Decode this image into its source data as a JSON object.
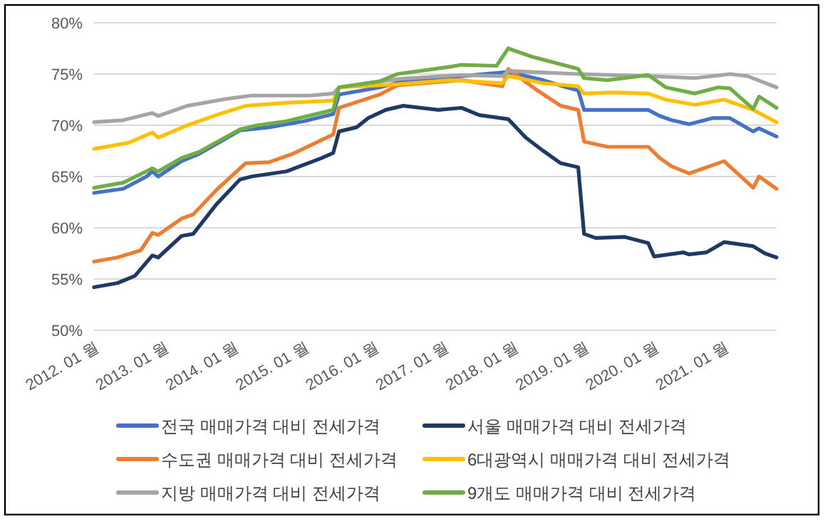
{
  "chart_data": {
    "type": "line",
    "ylim": [
      50,
      80
    ],
    "yticks": [
      {
        "value": 50,
        "label": "50%"
      },
      {
        "value": 55,
        "label": "55%"
      },
      {
        "value": 60,
        "label": "60%"
      },
      {
        "value": 65,
        "label": "65%"
      },
      {
        "value": 70,
        "label": "70%"
      },
      {
        "value": 75,
        "label": "75%"
      },
      {
        "value": 80,
        "label": "80%"
      }
    ],
    "xlim": [
      "2012-01",
      "2021-10"
    ],
    "xticks": [
      {
        "value": "2012-01",
        "label": "2012. 01 월"
      },
      {
        "value": "2013-01",
        "label": "2013. 01 월"
      },
      {
        "value": "2014-01",
        "label": "2014. 01 월"
      },
      {
        "value": "2015-01",
        "label": "2015. 01 월"
      },
      {
        "value": "2016-01",
        "label": "2016. 01 월"
      },
      {
        "value": "2017-01",
        "label": "2017. 01 월"
      },
      {
        "value": "2018-01",
        "label": "2018. 01 월"
      },
      {
        "value": "2019-01",
        "label": "2019. 01 월"
      },
      {
        "value": "2020-01",
        "label": "2020. 01 월"
      },
      {
        "value": "2021-01",
        "label": "2021. 01 월"
      }
    ],
    "grid": "y",
    "legend": "bottom",
    "series": [
      {
        "name": "전국 매매가격 대비 전세가격",
        "color": "#4472c4",
        "x": [
          "2012-01",
          "2012-06",
          "2012-10",
          "2012-11",
          "2012-12",
          "2013-04",
          "2013-07",
          "2014-02",
          "2014-07",
          "2015-01",
          "2015-06",
          "2015-07",
          "2016-02",
          "2016-06",
          "2017-04",
          "2017-12",
          "2018-06",
          "2018-10",
          "2018-12",
          "2019-01",
          "2019-12",
          "2020-02",
          "2020-04",
          "2020-07",
          "2020-11",
          "2021-02",
          "2021-06",
          "2021-07",
          "2021-10"
        ],
        "values": [
          63.4,
          63.8,
          65.0,
          65.5,
          65.0,
          66.5,
          67.2,
          69.5,
          69.8,
          70.4,
          71.1,
          73.0,
          73.7,
          74.3,
          74.8,
          75.2,
          74.4,
          73.7,
          73.4,
          71.5,
          71.5,
          70.9,
          70.5,
          70.1,
          70.7,
          70.7,
          69.4,
          69.7,
          68.9
        ]
      },
      {
        "name": "서울 매매가격 대비 전세가격",
        "color": "#203864",
        "x": [
          "2012-01",
          "2012-05",
          "2012-08",
          "2012-11",
          "2012-12",
          "2013-04",
          "2013-06",
          "2013-10",
          "2014-02",
          "2014-04",
          "2014-10",
          "2015-04",
          "2015-06",
          "2015-07",
          "2015-10",
          "2015-12",
          "2016-03",
          "2016-06",
          "2016-12",
          "2017-04",
          "2017-07",
          "2017-12",
          "2018-03",
          "2018-06",
          "2018-09",
          "2018-12",
          "2019-01",
          "2019-03",
          "2019-08",
          "2019-12",
          "2020-01",
          "2020-06",
          "2020-07",
          "2020-10",
          "2021-01",
          "2021-06",
          "2021-08",
          "2021-10"
        ],
        "values": [
          54.2,
          54.6,
          55.3,
          57.3,
          57.1,
          59.2,
          59.4,
          62.3,
          64.7,
          65.0,
          65.5,
          66.8,
          67.3,
          69.4,
          69.8,
          70.7,
          71.5,
          71.9,
          71.5,
          71.7,
          71.0,
          70.6,
          68.8,
          67.5,
          66.3,
          65.9,
          59.4,
          59.0,
          59.1,
          58.5,
          57.2,
          57.6,
          57.4,
          57.6,
          58.6,
          58.2,
          57.5,
          57.1
        ]
      },
      {
        "name": "수도권 매매가격 대비 전세가격",
        "color": "#ed7d31",
        "x": [
          "2012-01",
          "2012-05",
          "2012-09",
          "2012-11",
          "2012-12",
          "2013-04",
          "2013-06",
          "2013-10",
          "2014-03",
          "2014-07",
          "2014-11",
          "2015-06",
          "2015-07",
          "2016-02",
          "2016-05",
          "2017-04",
          "2017-11",
          "2017-12",
          "2018-05",
          "2018-09",
          "2018-12",
          "2019-01",
          "2019-05",
          "2019-12",
          "2020-02",
          "2020-04",
          "2020-07",
          "2021-01",
          "2021-06",
          "2021-07",
          "2021-10"
        ],
        "values": [
          56.7,
          57.1,
          57.8,
          59.5,
          59.3,
          60.9,
          61.3,
          63.7,
          66.3,
          66.4,
          67.2,
          69.1,
          71.7,
          73.0,
          73.9,
          74.4,
          73.8,
          75.5,
          73.4,
          71.9,
          71.5,
          68.4,
          67.9,
          67.9,
          66.8,
          66.0,
          65.3,
          66.5,
          63.9,
          65.0,
          63.8
        ]
      },
      {
        "name": "6대광역시 매매가격 대비 전세가격",
        "color": "#ffc000",
        "x": [
          "2012-01",
          "2012-07",
          "2012-11",
          "2012-12",
          "2013-05",
          "2013-10",
          "2014-03",
          "2014-10",
          "2015-06",
          "2015-07",
          "2016-05",
          "2017-02",
          "2017-11",
          "2017-12",
          "2018-06",
          "2018-12",
          "2019-01",
          "2019-06",
          "2019-12",
          "2020-03",
          "2020-08",
          "2021-01",
          "2021-06",
          "2021-10"
        ],
        "values": [
          67.7,
          68.3,
          69.3,
          68.8,
          70.0,
          71.0,
          71.9,
          72.2,
          72.4,
          73.7,
          74.0,
          74.4,
          74.1,
          74.8,
          74.1,
          73.8,
          73.1,
          73.2,
          73.1,
          72.5,
          72.0,
          72.5,
          71.5,
          70.3
        ]
      },
      {
        "name": "지방 매매가격 대비 전세가격",
        "color": "#a5a5a5",
        "x": [
          "2012-01",
          "2012-06",
          "2012-11",
          "2012-12",
          "2013-05",
          "2013-12",
          "2014-04",
          "2015-02",
          "2015-06",
          "2015-07",
          "2016-05",
          "2017-04",
          "2017-11",
          "2017-12",
          "2018-12",
          "2019-12",
          "2020-08",
          "2021-02",
          "2021-05",
          "2021-10"
        ],
        "values": [
          70.3,
          70.5,
          71.2,
          70.9,
          71.9,
          72.6,
          72.9,
          72.9,
          73.1,
          73.7,
          74.5,
          74.9,
          74.8,
          75.3,
          75.0,
          74.8,
          74.6,
          75.0,
          74.8,
          73.7
        ]
      },
      {
        "name": "9개도 매매가격 대비 전세가격",
        "color": "#70ad47",
        "x": [
          "2012-01",
          "2012-06",
          "2012-11",
          "2012-12",
          "2013-04",
          "2013-07",
          "2014-02",
          "2014-05",
          "2014-10",
          "2015-06",
          "2015-07",
          "2016-02",
          "2016-05",
          "2017-02",
          "2017-04",
          "2017-10",
          "2017-12",
          "2018-04",
          "2018-12",
          "2019-01",
          "2019-05",
          "2019-12",
          "2020-03",
          "2020-08",
          "2020-12",
          "2021-02",
          "2021-06",
          "2021-07",
          "2021-10"
        ],
        "values": [
          63.9,
          64.4,
          65.8,
          65.5,
          66.8,
          67.4,
          69.6,
          70.0,
          70.4,
          71.5,
          73.7,
          74.3,
          75.0,
          75.7,
          75.9,
          75.8,
          77.5,
          76.7,
          75.5,
          74.6,
          74.4,
          74.9,
          73.7,
          73.1,
          73.7,
          73.6,
          71.6,
          72.8,
          71.7
        ]
      }
    ]
  }
}
